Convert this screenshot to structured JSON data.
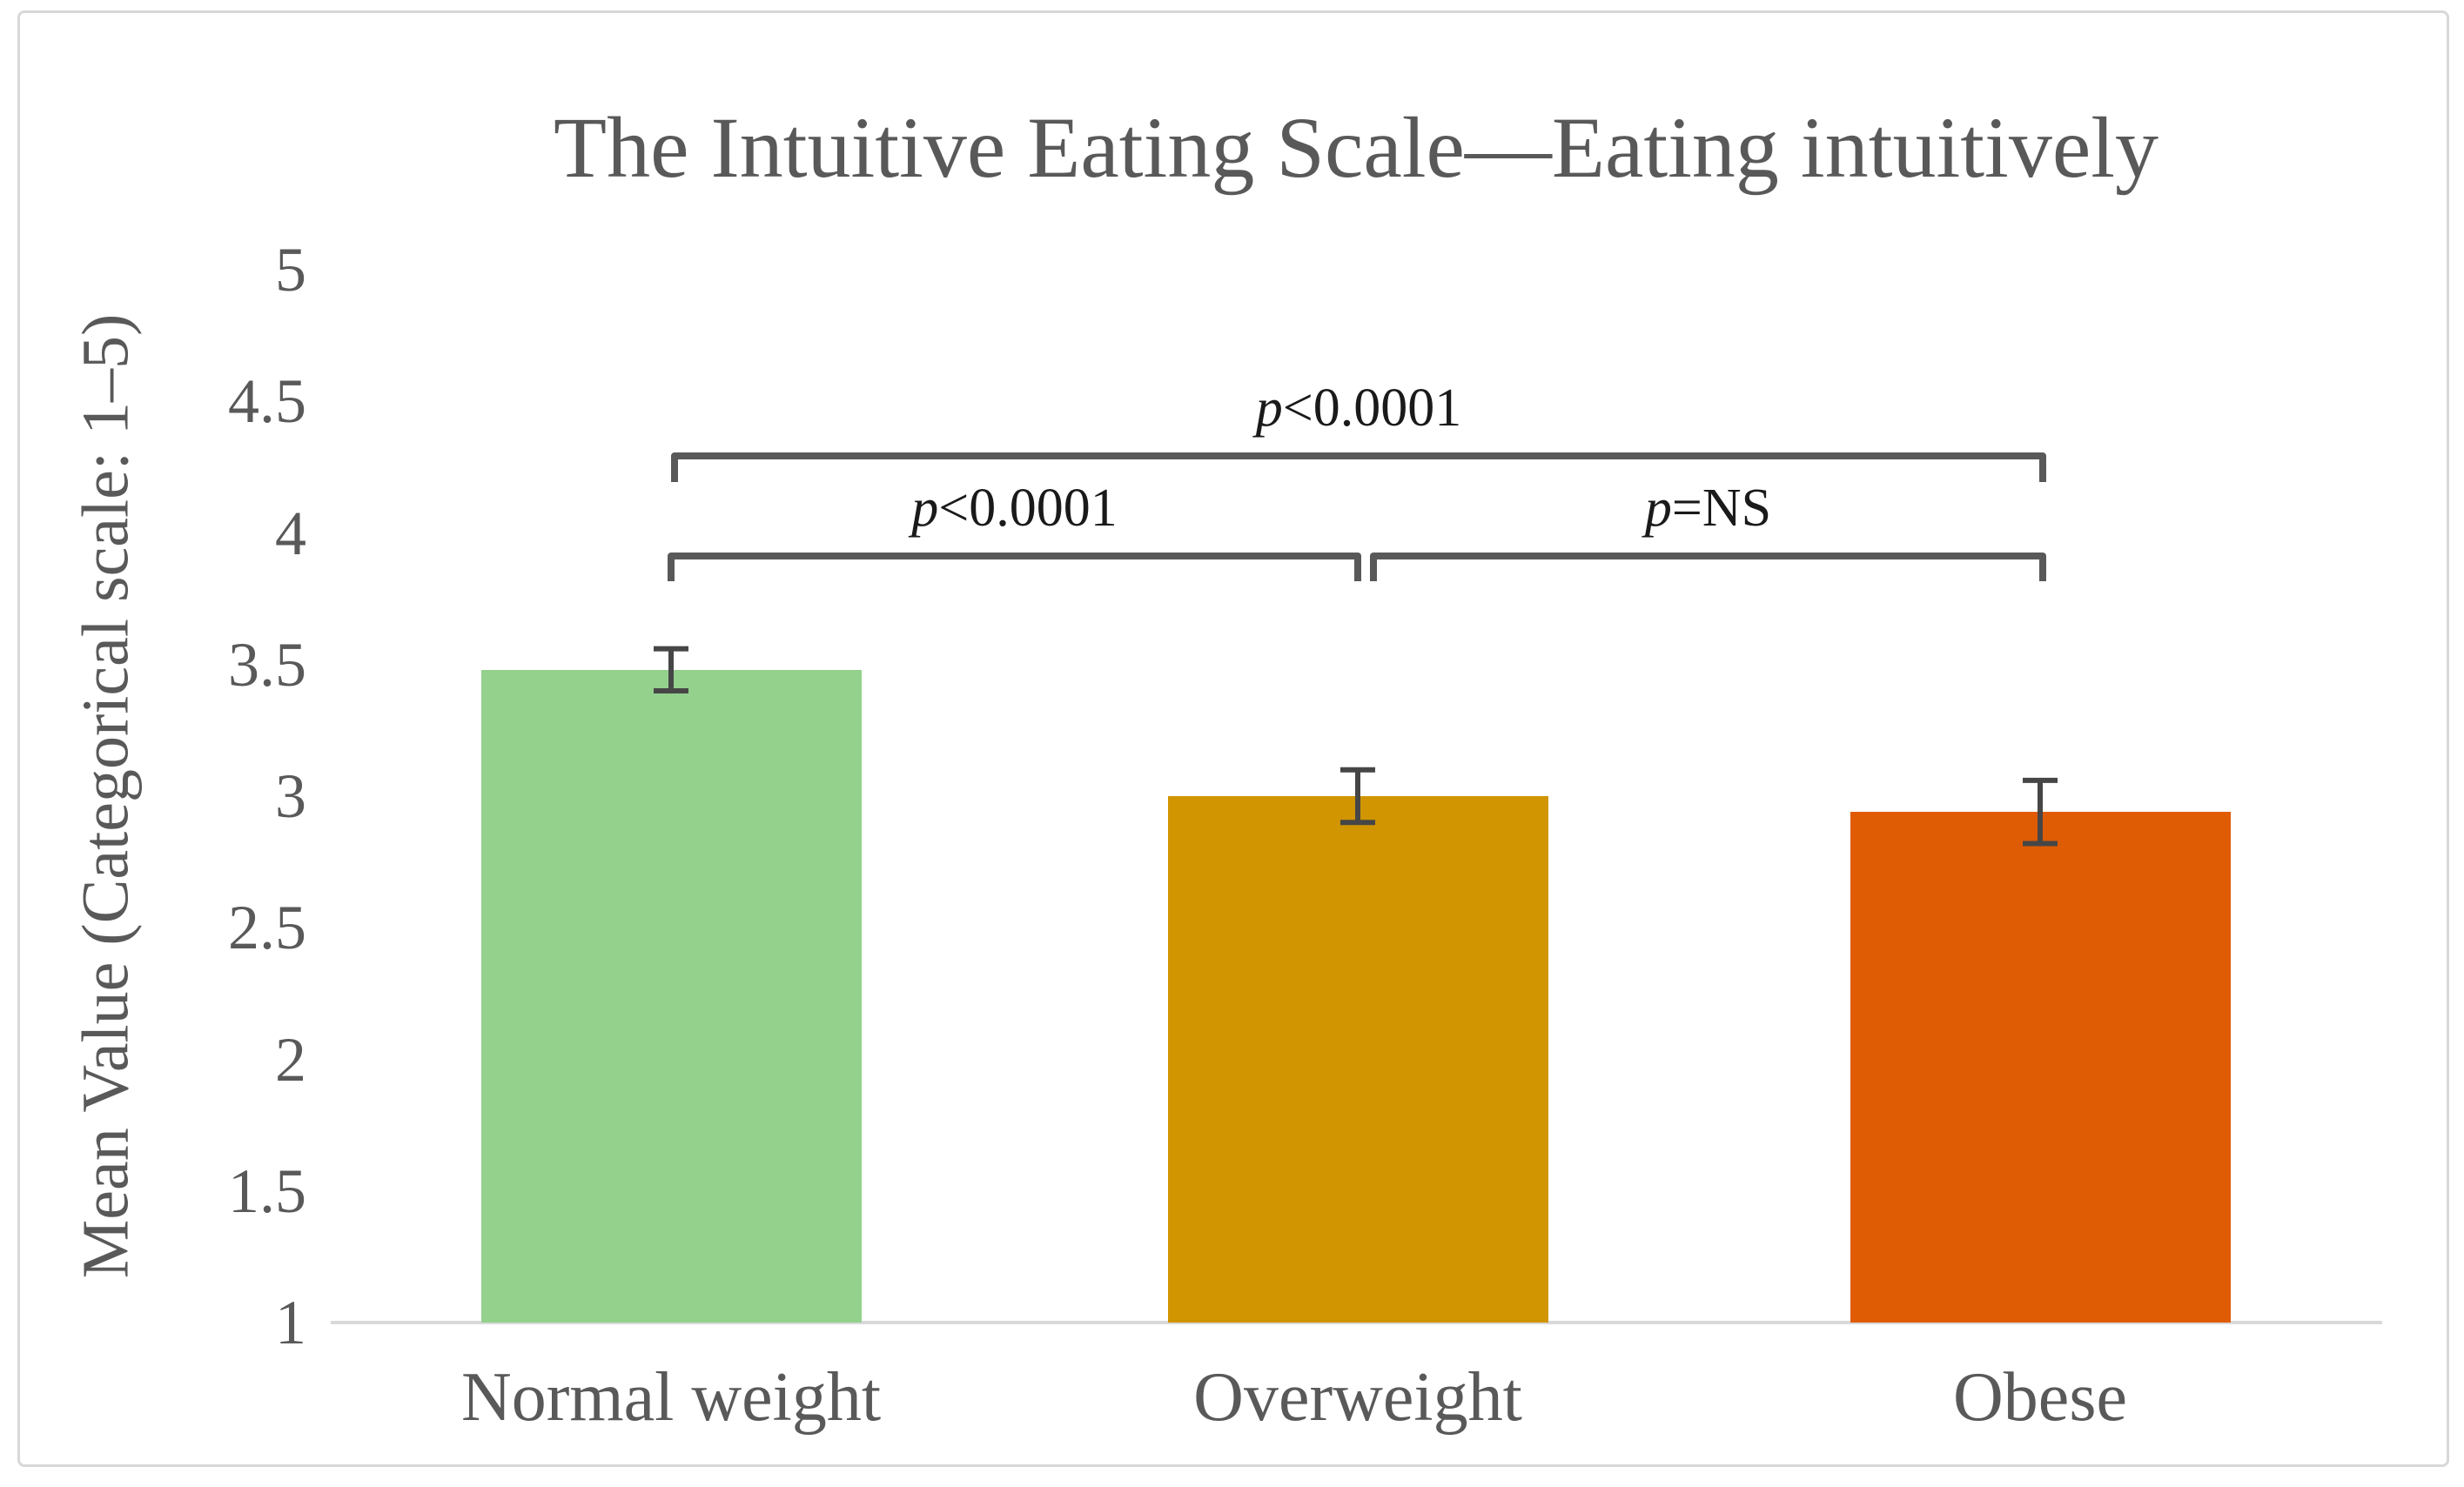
{
  "chart_data": {
    "type": "bar",
    "title": "The Intuitive Eating Scale—Eating intuitively",
    "ylabel": "Mean Value (Categorical scale: 1–5)",
    "xlabel": "",
    "categories": [
      "Normal weight",
      "Overweight",
      "Obese"
    ],
    "values": [
      3.48,
      3.0,
      2.94
    ],
    "error_bars": [
      0.08,
      0.1,
      0.12
    ],
    "bar_colors": [
      "#93D18C",
      "#D09500",
      "#E05C04"
    ],
    "ylim": [
      1,
      5
    ],
    "ytick_labels": [
      "5",
      "4.5",
      "4",
      "3.5",
      "3",
      "2.5",
      "2",
      "1.5",
      "1"
    ],
    "yticks": [
      5,
      4.5,
      4,
      3.5,
      3,
      2.5,
      2,
      1.5,
      1
    ],
    "grid": false,
    "legend": false,
    "annotations": [
      {
        "p_label": "p<0.0001",
        "between": [
          "Normal weight",
          "Obese"
        ]
      },
      {
        "p_label": "p<0.0001",
        "between": [
          "Normal weight",
          "Overweight"
        ]
      },
      {
        "p_label": "p=NS",
        "between": [
          "Overweight",
          "Obese"
        ]
      }
    ],
    "colors": {
      "text": "#595959",
      "axis_line": "#d9d9d9",
      "bracket": "#595959",
      "error_bar": "#464646",
      "p_label_text": "#1a1a1a",
      "frame_border": "#d8d8d8",
      "background": "#ffffff"
    }
  }
}
